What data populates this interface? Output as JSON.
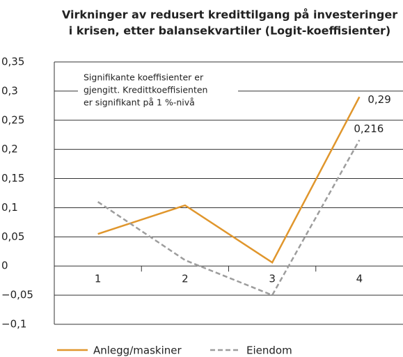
{
  "chart_data": {
    "type": "line",
    "title": [
      "Virkninger av redusert kredittilgang på investeringer",
      "i krisen, etter balansekvartiler (Logit-koeffisienter)"
    ],
    "annotation": [
      "Signifikante koeffisienter er",
      "gjengitt. Kredittkoeffisienten",
      "er signifikant på 1 %-nivå"
    ],
    "categories": [
      "1",
      "2",
      "3",
      "4"
    ],
    "series": [
      {
        "name": "Anlegg/maskiner",
        "color": "#e0962c",
        "dash": false,
        "values": [
          0.055,
          0.104,
          0.006,
          0.29
        ],
        "value_labels": [
          null,
          null,
          null,
          "0,29"
        ]
      },
      {
        "name": "Eiendom",
        "color": "#9d9d9d",
        "dash": true,
        "values": [
          0.11,
          0.01,
          -0.05,
          0.216
        ],
        "value_labels": [
          null,
          null,
          null,
          "0,216"
        ]
      }
    ],
    "ylim": [
      -0.1,
      0.35
    ],
    "yticks": [
      {
        "value": -0.1,
        "label": "−0,1"
      },
      {
        "value": -0.05,
        "label": "−0,05"
      },
      0,
      {
        "value": 0.05,
        "label": "0,05"
      },
      {
        "value": 0.1,
        "label": "0,1"
      },
      {
        "value": 0.15,
        "label": "0,15"
      },
      {
        "value": 0.2,
        "label": "0,2"
      },
      {
        "value": 0.25,
        "label": "0,25"
      },
      {
        "value": 0.3,
        "label": "0,3"
      },
      {
        "value": 0.35,
        "label": "0,35"
      }
    ],
    "grid": true
  }
}
